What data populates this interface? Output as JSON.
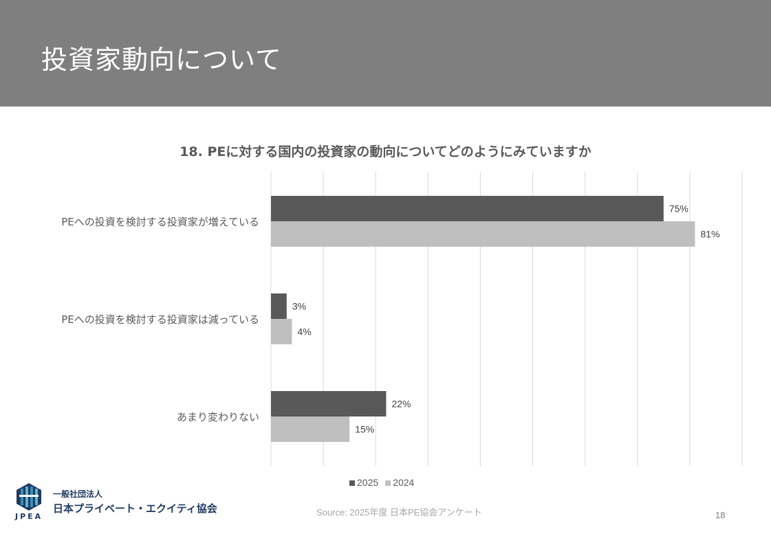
{
  "header": {
    "title": "投資家動向について"
  },
  "chart_data": {
    "type": "bar",
    "orientation": "horizontal",
    "title": "18. PEに対する国内の投資家の動向についてどのようにみていますか",
    "categories": [
      "PEへの投資を検討する投資家が増えている",
      "PEへの投資を検討する投資家は減っている",
      "あまり変わりない"
    ],
    "series": [
      {
        "name": "2025",
        "values": [
          75,
          3,
          22
        ],
        "labels": [
          "75%",
          "3%",
          "22%"
        ],
        "color": "#595959"
      },
      {
        "name": "2024",
        "values": [
          81,
          4,
          15
        ],
        "labels": [
          "81%",
          "4%",
          "15%"
        ],
        "color": "#bfbfbf"
      }
    ],
    "xlim": [
      0,
      90
    ],
    "grid": true,
    "legend": "bottom"
  },
  "footer": {
    "source": "Source: 2025年度 日本PE協会アンケート",
    "page_number": "18",
    "logo": {
      "abbr": "JPEA",
      "line1": "一般社団法人",
      "line2": "日本プライベート・エクイティ協会"
    }
  }
}
